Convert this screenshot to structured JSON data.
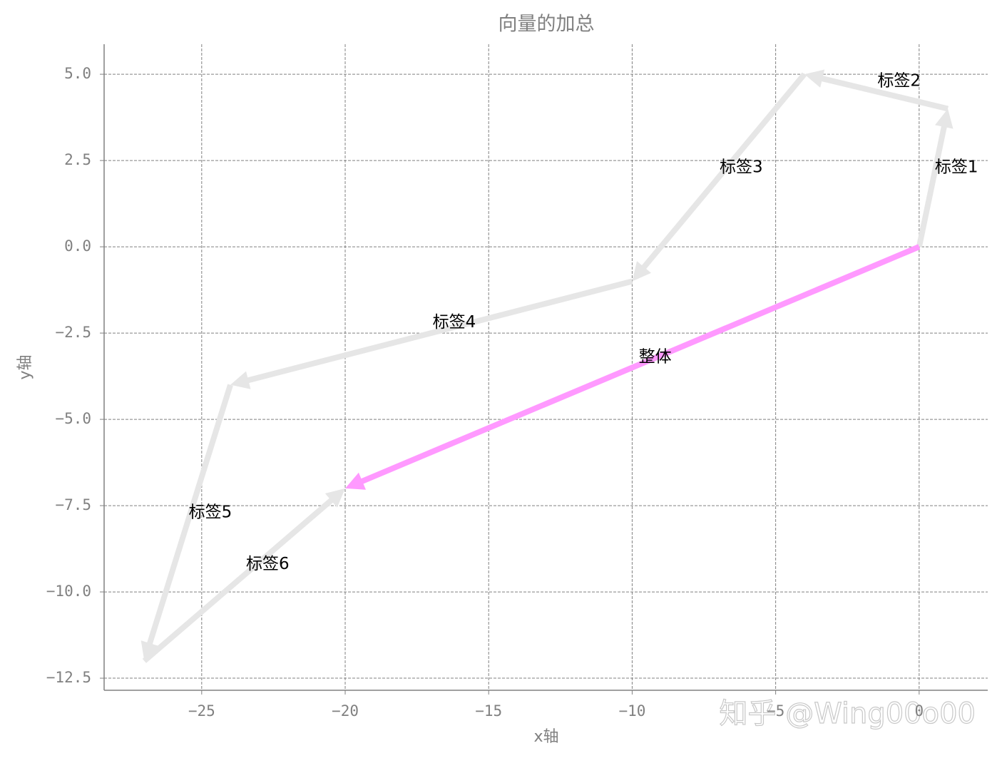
{
  "chart_data": {
    "type": "vector",
    "title": "向量的加总",
    "xlabel": "x轴",
    "ylabel": "y轴",
    "xlim": [
      -28.4,
      2.39
    ],
    "ylim": [
      -12.85,
      5.87
    ],
    "xticks": [
      {
        "value": -25,
        "label": "−25"
      },
      {
        "value": -20,
        "label": "−20"
      },
      {
        "value": -15,
        "label": "−15"
      },
      {
        "value": -10,
        "label": "−10"
      },
      {
        "value": -5,
        "label": "−5"
      },
      0
    ],
    "yticks": [
      {
        "value": -12.5,
        "label": "−12.5"
      },
      {
        "value": -10,
        "label": "−10.0"
      },
      {
        "value": -7.5,
        "label": "−7.5"
      },
      {
        "value": -5,
        "label": "−5.0"
      },
      {
        "value": -2.5,
        "label": "−2.5"
      },
      {
        "value": 0,
        "label": "0.0"
      },
      {
        "value": 2.5,
        "label": "2.5"
      },
      {
        "value": 5,
        "label": "5.0"
      }
    ],
    "grid": true,
    "series": [
      {
        "name": "标签1",
        "color": "#e6e6e6",
        "x": 0,
        "y": 0,
        "dx": 1,
        "dy": 4
      },
      {
        "name": "标签2",
        "color": "#e6e6e6",
        "x": 1,
        "y": 4,
        "dx": -5,
        "dy": 1
      },
      {
        "name": "标签3",
        "color": "#e6e6e6",
        "x": -4,
        "y": 5,
        "dx": -6,
        "dy": -6
      },
      {
        "name": "标签4",
        "color": "#e6e6e6",
        "x": -10,
        "y": -1,
        "dx": -14,
        "dy": -3
      },
      {
        "name": "标签5",
        "color": "#e6e6e6",
        "x": -24,
        "y": -4,
        "dx": -3,
        "dy": -8
      },
      {
        "name": "标签6",
        "color": "#e6e6e6",
        "x": -27,
        "y": -12,
        "dx": 7,
        "dy": 5
      },
      {
        "name": "整体",
        "color": "#ff99ff",
        "x": 0,
        "y": 0,
        "dx": -20,
        "dy": -7
      }
    ],
    "watermark": "知乎 @Wing00o00"
  }
}
